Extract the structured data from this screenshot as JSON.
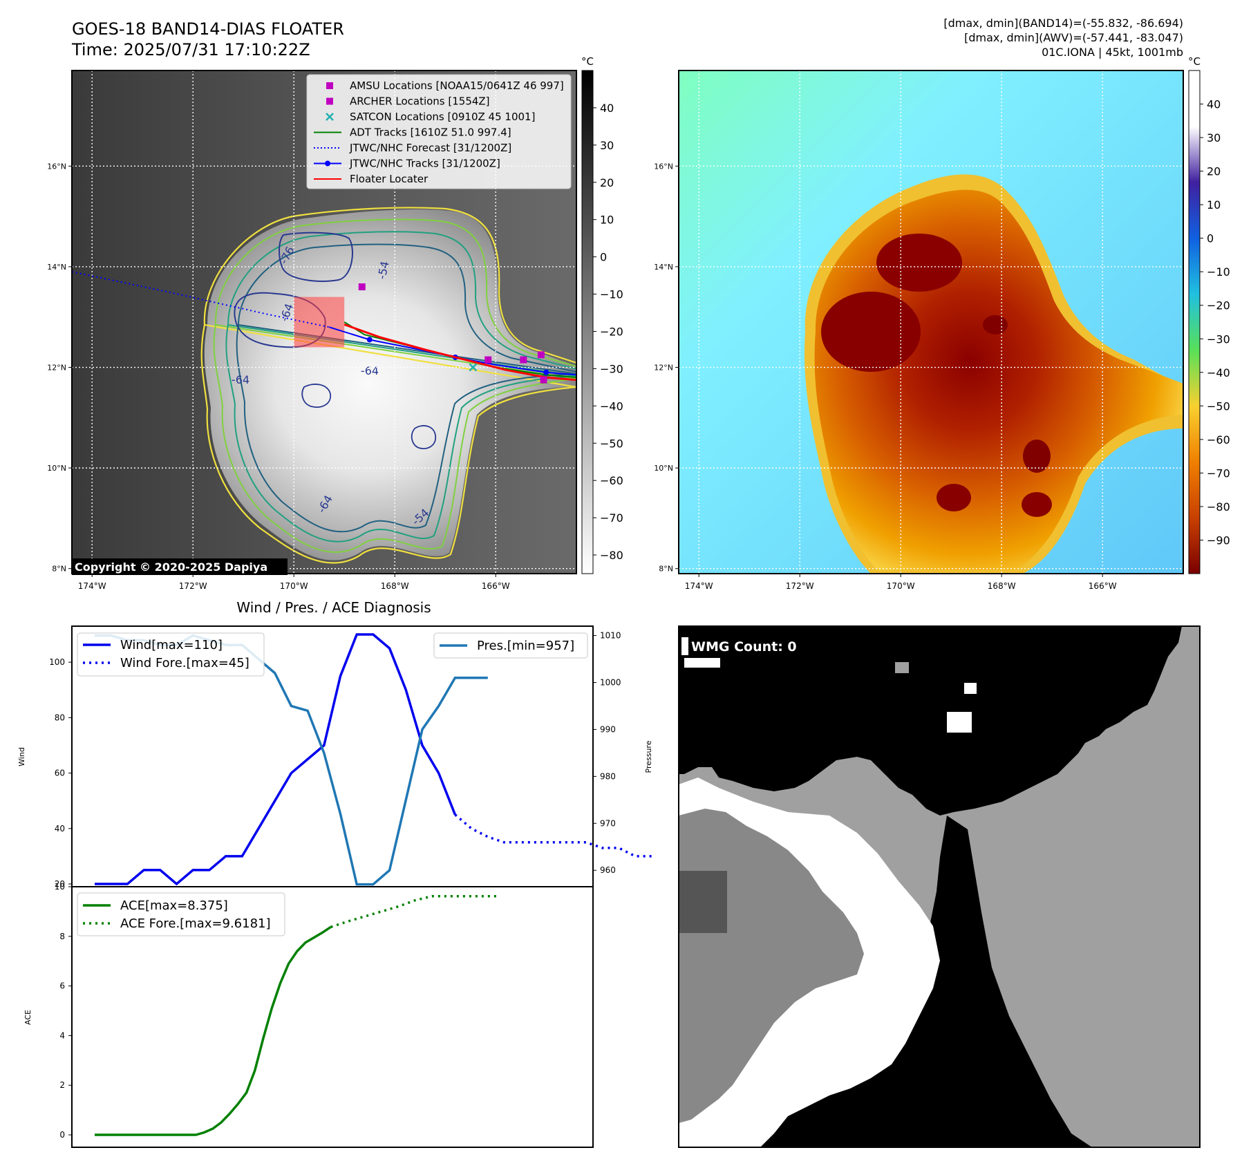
{
  "header": {
    "title": "GOES-18 BAND14-DIAS FLOATER",
    "time": "Time: 2025/07/31 17:10:22Z",
    "info_line1": "[dmax, dmin](BAND14)=(-55.832, -86.694)",
    "info_line2": "[dmax, dmin](AWV)=(-57.441, -83.047)",
    "info_line3": "01C.IONA | 45kt, 1001mb"
  },
  "map": {
    "lon_range": [
      -174.4,
      -164.4
    ],
    "lat_range": [
      7.9,
      17.9
    ],
    "lon_ticks": [
      -174,
      -172,
      -170,
      -168,
      -166
    ],
    "lon_tick_labels": [
      "174°W",
      "172°W",
      "170°W",
      "168°W",
      "166°W"
    ],
    "lat_ticks": [
      8,
      10,
      12,
      14,
      16
    ],
    "lat_tick_labels": [
      "8°N",
      "10°N",
      "12°N",
      "14°N",
      "16°N"
    ],
    "copyright": "Copyright © 2020-2025 Dapiya",
    "contour_labels": [
      "-76",
      "-64",
      "-64",
      "-64",
      "-54",
      "-64",
      "-54"
    ],
    "legend": [
      {
        "label": "AMSU Locations [NOAA15/0641Z 46 997]",
        "marker": "square",
        "color": "#c000c0"
      },
      {
        "label": "ARCHER Locations [1554Z]",
        "marker": "square",
        "color": "#c000c0"
      },
      {
        "label": "SATCON Locations [0910Z 45 1001]",
        "marker": "x",
        "color": "#20b0b0"
      },
      {
        "label": "ADT Tracks [1610Z 51.0 997.4]",
        "marker": "line",
        "color": "#008000"
      },
      {
        "label": "JTWC/NHC Forecast [31/1200Z]",
        "marker": "dotted",
        "color": "#0000ff"
      },
      {
        "label": "JTWC/NHC Tracks [31/1200Z]",
        "marker": "line-dot",
        "color": "#0000ff"
      },
      {
        "label": "Floater Locater",
        "marker": "line",
        "color": "#ff0000"
      }
    ],
    "jtwc_forecast": [
      [
        -174.4,
        13.9
      ],
      [
        -172.5,
        13.5
      ],
      [
        -170.5,
        13.05
      ],
      [
        -169.3,
        12.8
      ]
    ],
    "jtwc_track": [
      [
        -169.3,
        12.8
      ],
      [
        -168.5,
        12.55
      ],
      [
        -167.5,
        12.35
      ],
      [
        -166.8,
        12.2
      ],
      [
        -166.0,
        12.05
      ],
      [
        -165.0,
        11.9
      ],
      [
        -164.4,
        11.85
      ]
    ],
    "adt_track": [
      [
        -169.0,
        12.9
      ],
      [
        -168.6,
        12.65
      ],
      [
        -167.8,
        12.45
      ],
      [
        -166.8,
        12.2
      ],
      [
        -166.0,
        12.0
      ],
      [
        -165.0,
        11.85
      ],
      [
        -164.4,
        11.8
      ]
    ],
    "floater_track": [
      [
        -169.0,
        12.85
      ],
      [
        -168.3,
        12.6
      ],
      [
        -167.4,
        12.35
      ],
      [
        -166.6,
        12.15
      ],
      [
        -165.8,
        11.95
      ],
      [
        -165.0,
        11.8
      ],
      [
        -164.4,
        11.75
      ]
    ],
    "amsu_points": [
      [
        -168.65,
        13.6
      ],
      [
        -166.15,
        12.15
      ],
      [
        -165.45,
        12.15
      ],
      [
        -165.1,
        12.25
      ]
    ],
    "archer_points": [
      [
        -165.05,
        11.75
      ]
    ],
    "satcon_points": [
      [
        -166.45,
        12.0
      ]
    ],
    "floater_box": {
      "lon": [
        -170.0,
        -169.0
      ],
      "lat": [
        12.4,
        13.4
      ]
    }
  },
  "colorbar_gray": {
    "unit": "°C",
    "ticks": [
      40,
      30,
      20,
      10,
      0,
      -10,
      -20,
      -30,
      -40,
      -50,
      -60,
      -70,
      -80
    ],
    "tick_labels": [
      "40",
      "30",
      "20",
      "10",
      "0",
      "−10",
      "−20",
      "−30",
      "−40",
      "−50",
      "−60",
      "−70",
      "−80"
    ],
    "range": [
      -85,
      50
    ],
    "colors": [
      "#ffffff",
      "#000000"
    ]
  },
  "colorbar_color": {
    "unit": "°C",
    "ticks": [
      40,
      30,
      20,
      10,
      0,
      -10,
      -20,
      -30,
      -40,
      -50,
      -60,
      -70,
      -80,
      -90
    ],
    "tick_labels": [
      "40",
      "30",
      "20",
      "10",
      "0",
      "−10",
      "−20",
      "−30",
      "−40",
      "−50",
      "−60",
      "−70",
      "−80",
      "−90"
    ],
    "range": [
      -100,
      50
    ],
    "colors": [
      "#7a0000",
      "#c84000",
      "#f08000",
      "#f8d030",
      "#58e058",
      "#20c0e0",
      "#1060e0",
      "#4020a0",
      "#ffffff",
      "#ffffff"
    ]
  },
  "chart_data": [
    {
      "type": "line",
      "title": "Wind / Pres. / ACE Diagnosis",
      "ylabel": "Wind",
      "ylabel_right": "Pressure",
      "ylim": [
        19,
        113
      ],
      "ylim_right": [
        956.5,
        1012
      ],
      "yticks": [
        20,
        40,
        60,
        80,
        100
      ],
      "yticks_right": [
        960,
        970,
        980,
        990,
        1000,
        1010
      ],
      "x_count": 31,
      "legend_left": [
        "Wind[max=110]",
        "Wind Fore.[max=45]"
      ],
      "legend_right": [
        "Pres.[min=957]"
      ],
      "series": [
        {
          "name": "Wind[max=110]",
          "color": "#0000ee",
          "style": "solid",
          "x": [
            0,
            1,
            2,
            3,
            4,
            5,
            6,
            7,
            8,
            9,
            10,
            11,
            12,
            13,
            14,
            15,
            16,
            17,
            18,
            19,
            20,
            21,
            22
          ],
          "values": [
            20,
            20,
            20,
            25,
            25,
            20,
            25,
            25,
            30,
            30,
            40,
            50,
            60,
            65,
            70,
            95,
            110,
            110,
            105,
            90,
            70,
            60,
            45
          ]
        },
        {
          "name": "Wind Fore.[max=45]",
          "color": "#0000ee",
          "style": "dotted",
          "x": [
            22,
            23,
            24,
            25,
            26,
            27,
            28,
            29,
            30,
            31,
            32,
            33,
            34
          ],
          "values": [
            45,
            40,
            37,
            35,
            35,
            35,
            35,
            35,
            35,
            33,
            33,
            30,
            30
          ]
        },
        {
          "name": "Pres.[min=957]",
          "color": "#1f77b4",
          "style": "solid",
          "axis": "right",
          "x": [
            0,
            1,
            2,
            3,
            4,
            5,
            6,
            7,
            8,
            9,
            10,
            11,
            12,
            13,
            14,
            15,
            16,
            17,
            18,
            19,
            20,
            21,
            22,
            23,
            24
          ],
          "values": [
            1010,
            1010,
            1009,
            1009,
            1008,
            1008,
            1010,
            1009,
            1008,
            1008,
            1005,
            1002,
            995,
            994,
            985,
            972,
            957,
            957,
            960,
            975,
            990,
            995,
            1001,
            1001,
            1001
          ]
        }
      ]
    },
    {
      "type": "line",
      "ylabel": "ACE",
      "ylim": [
        -0.5,
        10
      ],
      "yticks": [
        0,
        2,
        4,
        6,
        8,
        10
      ],
      "legend": [
        "ACE[max=8.375]",
        "ACE Fore.[max=9.6181]"
      ],
      "series": [
        {
          "name": "ACE[max=8.375]",
          "color": "#008000",
          "style": "solid",
          "x": [
            0,
            3,
            6,
            9,
            12,
            13,
            14,
            15,
            16,
            17,
            18,
            19,
            20,
            21,
            22,
            23,
            24,
            25,
            26,
            27,
            28
          ],
          "values": [
            0,
            0,
            0,
            0,
            0,
            0.1,
            0.25,
            0.5,
            0.85,
            1.25,
            1.7,
            2.6,
            3.9,
            5.1,
            6.1,
            6.9,
            7.4,
            7.75,
            7.95,
            8.15,
            8.375
          ]
        },
        {
          "name": "ACE Fore.[max=9.6181]",
          "color": "#008000",
          "style": "dotted",
          "x": [
            28,
            30,
            32,
            34,
            36,
            38,
            40,
            42,
            44,
            46,
            48
          ],
          "values": [
            8.375,
            8.6,
            8.8,
            9.0,
            9.2,
            9.45,
            9.6181,
            9.6181,
            9.6181,
            9.6181,
            9.6181
          ]
        }
      ]
    }
  ],
  "wmg": {
    "label": "WMG Count: 0"
  }
}
